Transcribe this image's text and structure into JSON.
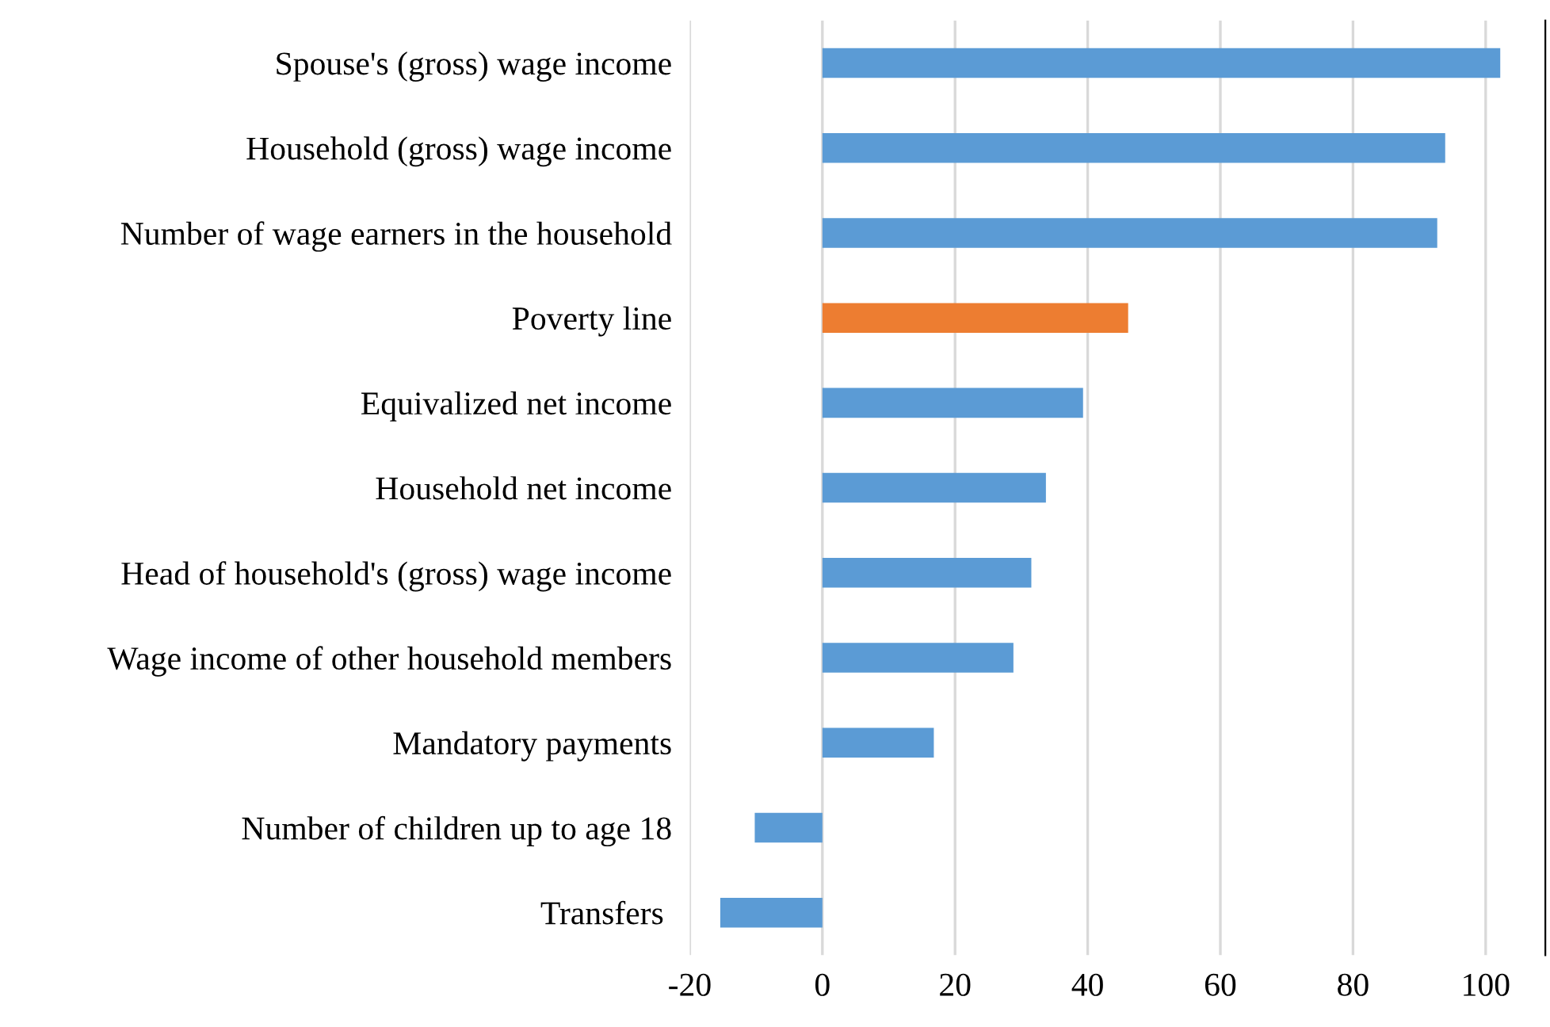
{
  "chart_data": {
    "type": "bar",
    "orientation": "horizontal",
    "categories": [
      "Spouse's (gross) wage income",
      "Household (gross) wage income",
      "Number of wage earners in the household",
      "Poverty line",
      "Equivalized net income",
      "Household net income",
      "Head of household's (gross) wage income",
      "Wage income of other household members",
      "Mandatory payments",
      "Number of children up to age 18",
      "Transfers "
    ],
    "values": [
      102.2,
      93.9,
      92.7,
      46.1,
      39.3,
      33.7,
      31.5,
      28.8,
      16.8,
      -10.2,
      -15.4
    ],
    "colors": [
      "#5b9bd5",
      "#5b9bd5",
      "#5b9bd5",
      "#ed7d31",
      "#5b9bd5",
      "#5b9bd5",
      "#5b9bd5",
      "#5b9bd5",
      "#5b9bd5",
      "#5b9bd5",
      "#5b9bd5"
    ],
    "xlim": [
      -20,
      109
    ],
    "xticks": [
      -20,
      0,
      20,
      40,
      60,
      80,
      100
    ],
    "grid": "x"
  }
}
